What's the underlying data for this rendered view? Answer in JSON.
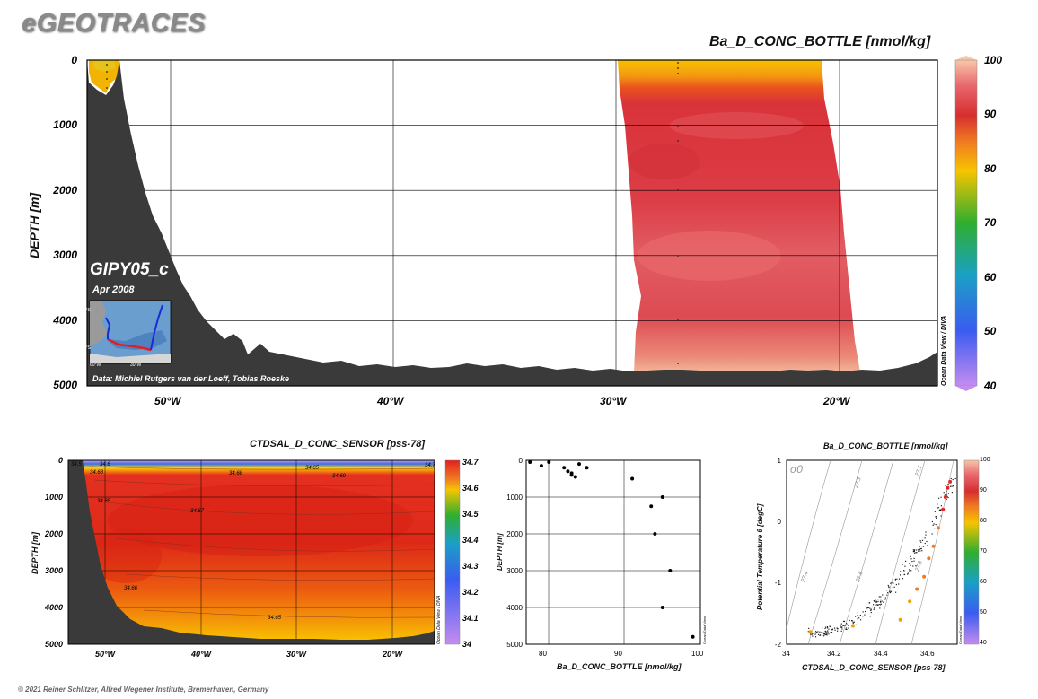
{
  "brand": "eGEOTRACES",
  "copyright": "© 2021 Reiner Schlitzer, Alfred Wegener Institute, Bremerhaven, Germany",
  "main": {
    "title": "Ba_D_CONC_BOTTLE [nmol/kg]",
    "ylabel": "DEPTH [m]",
    "yticks": [
      "0",
      "1000",
      "2000",
      "3000",
      "4000",
      "5000"
    ],
    "xticks": [
      "50°W",
      "40°W",
      "30°W",
      "20°W"
    ],
    "colorbar_ticks": [
      "100",
      "90",
      "80",
      "70",
      "60",
      "50",
      "40"
    ],
    "colorbar_range": [
      40,
      100
    ],
    "odv_label": "Ocean Data View / DIVA",
    "cruise": "GIPY05_c",
    "date": "Apr 2008",
    "credit": "Data: Michiel Rutgers van der Loeff, Tobias Roeske",
    "inset_labels": [
      "40°S",
      "70°S",
      "60°W",
      "30°W"
    ]
  },
  "section2": {
    "title": "CTDSAL_D_CONC_SENSOR [pss-78]",
    "ylabel": "DEPTH [m]",
    "yticks": [
      "0",
      "1000",
      "2000",
      "3000",
      "4000",
      "5000"
    ],
    "xticks": [
      "50°W",
      "40°W",
      "30°W",
      "20°W"
    ],
    "colorbar_ticks": [
      "34.7",
      "34.6",
      "34.5",
      "34.4",
      "34.3",
      "34.2",
      "34.1",
      "34"
    ],
    "contour_labels": [
      "34.5",
      "34.6",
      "34.68",
      "34.65",
      "34.69",
      "34.68",
      "34.67",
      "34.66",
      "34.65",
      "34.7",
      "34.65"
    ],
    "odv_label": "Ocean Data View / DIVA"
  },
  "scatter": {
    "xlabel": "Ba_D_CONC_BOTTLE [nmol/kg]",
    "ylabel": "DEPTH [m]",
    "xticks": [
      "80",
      "90",
      "100"
    ],
    "yticks": [
      "0",
      "1000",
      "2000",
      "3000",
      "4000",
      "5000"
    ],
    "odv_label": "Ocean Data View"
  },
  "ts": {
    "title": "Ba_D_CONC_BOTTLE [nmol/kg]",
    "xlabel": "CTDSAL_D_CONC_SENSOR [pss-78]",
    "ylabel": "Potential Temperature θ [degC]",
    "xticks": [
      "34",
      "34.2",
      "34.4",
      "34.6"
    ],
    "yticks": [
      "1",
      "0",
      "-1",
      "-2"
    ],
    "colorbar_ticks": [
      "100",
      "90",
      "80",
      "70",
      "60",
      "50",
      "40"
    ],
    "sigma_label": "σ0",
    "isopycnals": [
      "27.4",
      "27.5",
      "27.6",
      "27.7",
      "27.8"
    ],
    "odv_label": "Ocean Data View"
  },
  "chart_data": [
    {
      "type": "scatter",
      "title": "Ba_D_CONC_BOTTLE [nmol/kg]",
      "xlabel": "Ba_D_CONC_BOTTLE [nmol/kg]",
      "ylabel": "DEPTH [m]",
      "xlim": [
        77,
        100
      ],
      "ylim": [
        5000,
        0
      ],
      "x": [
        77.5,
        79,
        80,
        82,
        82.5,
        83,
        83,
        83.5,
        84,
        85,
        91,
        93.5,
        94,
        95,
        95,
        96,
        99
      ],
      "y": [
        50,
        150,
        50,
        200,
        300,
        350,
        400,
        450,
        100,
        200,
        500,
        1250,
        2000,
        1000,
        4000,
        3000,
        4800
      ]
    },
    {
      "type": "scatter",
      "title": "Ba_D_CONC_BOTTLE [nmol/kg]",
      "xlabel": "CTDSAL_D_CONC_SENSOR [pss-78]",
      "ylabel": "Potential Temperature θ [degC]",
      "xlim": [
        34,
        34.72
      ],
      "ylim": [
        -2,
        1
      ],
      "x": [
        34.1,
        34.28,
        34.48,
        34.52,
        34.55,
        34.58,
        34.6,
        34.62,
        34.64,
        34.66,
        34.67,
        34.68,
        34.69
      ],
      "y": [
        -1.8,
        -1.7,
        -1.6,
        -1.3,
        -1.1,
        -0.9,
        -0.6,
        -0.4,
        -0.1,
        0.2,
        0.4,
        0.55,
        0.65
      ]
    }
  ]
}
